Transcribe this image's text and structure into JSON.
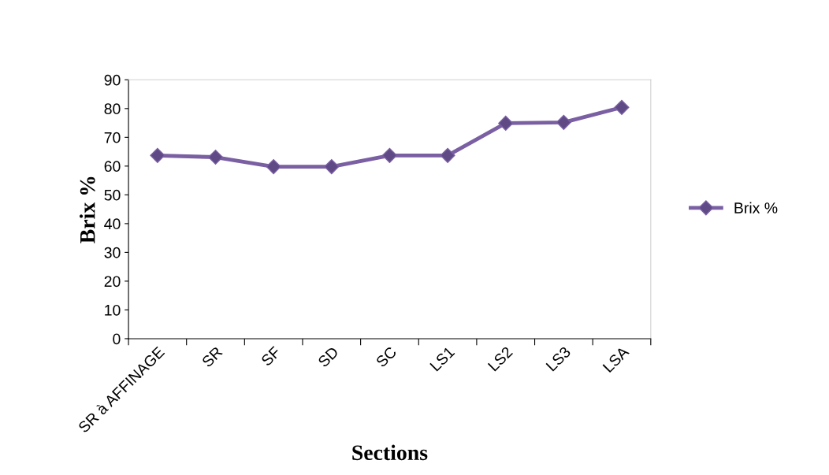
{
  "chart_data": {
    "type": "line",
    "xlabel": "Sections",
    "ylabel": "Brix %",
    "categories": [
      "SR à AFFINAGE",
      "SR",
      "SF",
      "SD",
      "SC",
      "LS1",
      "LS2",
      "LS3",
      "LSA"
    ],
    "series": [
      {
        "name": "Brix %",
        "color": "#7a5fa3",
        "values": [
          63.7,
          63.1,
          59.8,
          59.8,
          63.7,
          63.7,
          74.9,
          75.2,
          80.4
        ]
      }
    ],
    "ylim": [
      0,
      90
    ],
    "yticks": [
      0,
      10,
      20,
      30,
      40,
      50,
      60,
      70,
      80,
      90
    ],
    "marker": "diamond",
    "line_style": "solid",
    "legend": "right",
    "grid": false
  }
}
